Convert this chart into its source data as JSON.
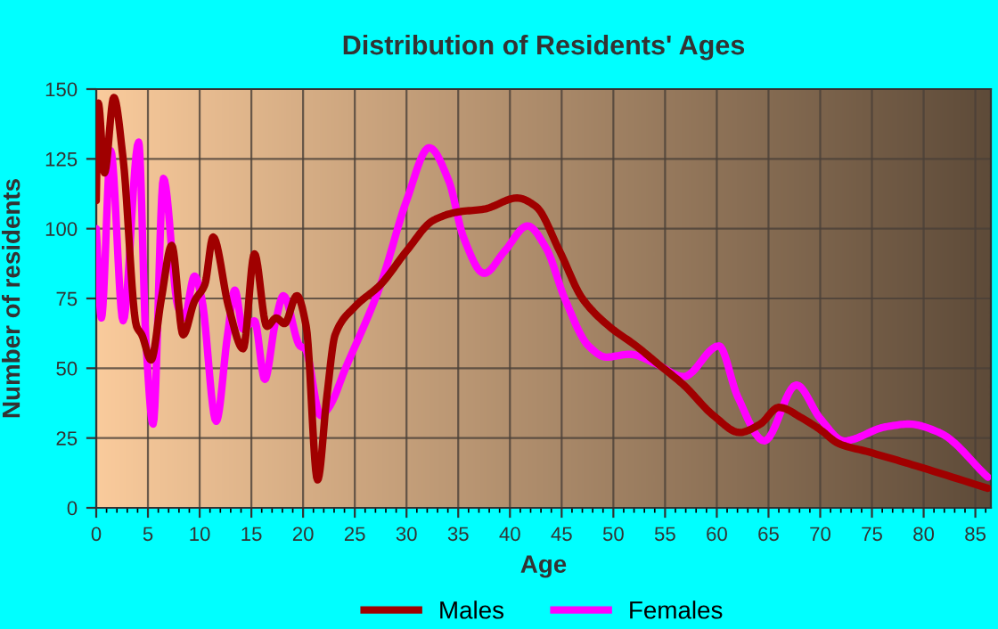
{
  "chart_data": {
    "type": "line",
    "title": "Distribution of Residents' Ages",
    "xlabel": "Age",
    "ylabel": "Number of residents",
    "xlim": [
      0,
      86.5
    ],
    "xticks": [
      0,
      5,
      10,
      15,
      20,
      25,
      30,
      35,
      40,
      45,
      50,
      55,
      60,
      65,
      70,
      75,
      80,
      85
    ],
    "ylim": [
      0,
      150
    ],
    "yticks": [
      0,
      25,
      50,
      75,
      100,
      125,
      150
    ],
    "grid": true,
    "legend": "bottom",
    "line_style": "solid",
    "marker": "none",
    "series": [
      {
        "name": "Males",
        "color": "#a00000",
        "x": [
          0,
          0.2,
          0.8,
          1.7,
          2.6,
          3.9,
          4.4,
          5.3,
          6.3,
          7.3,
          8.4,
          9.5,
          10.5,
          11.3,
          12.8,
          14.2,
          15.3,
          16.5,
          17.4,
          18.2,
          19.4,
          20.3,
          21.4,
          22.3,
          23.1,
          25,
          27.5,
          30,
          32.6,
          35,
          37.5,
          40.7,
          42.5,
          44.8,
          47,
          49.6,
          52.2,
          54.5,
          56.8,
          59.7,
          62.2,
          64.2,
          66,
          68.3,
          70,
          71.8,
          74.7,
          79.3,
          86.2
        ],
        "values": [
          110,
          145,
          120,
          147,
          125,
          65,
          62,
          53,
          75,
          94,
          62,
          74,
          80,
          97,
          72,
          57,
          91,
          65,
          68,
          66,
          76,
          65,
          10,
          40,
          62,
          72,
          80,
          92,
          103,
          106,
          107,
          111,
          108,
          92,
          75,
          65,
          58,
          51,
          44,
          33,
          27,
          30,
          36,
          32,
          28,
          23,
          20,
          15,
          7
        ]
      },
      {
        "name": "Females",
        "color": "#ff00ff",
        "x": [
          0,
          0.5,
          1.4,
          2.6,
          4.1,
          4.8,
          5.5,
          6.5,
          7.9,
          8.5,
          9.5,
          10.2,
          11.6,
          12.7,
          13.4,
          14.2,
          15.3,
          16.3,
          17.3,
          18.1,
          19.7,
          20.2,
          21.7,
          22.5,
          24.1,
          27.5,
          30,
          32.2,
          34.1,
          35.5,
          37.5,
          39.5,
          41.7,
          43.5,
          45.3,
          47.6,
          49.3,
          51.6,
          53.9,
          56.8,
          60.2,
          62,
          64.6,
          67.7,
          70,
          72.3,
          76.3,
          78.6,
          81.5,
          86.2
        ],
        "values": [
          100,
          68,
          128,
          67,
          131,
          60,
          30,
          118,
          72,
          68,
          83,
          75,
          31,
          62,
          78,
          64,
          67,
          46,
          66,
          76,
          58,
          57,
          33,
          36,
          50,
          80,
          110,
          129,
          117,
          97,
          84,
          92,
          101,
          93,
          75,
          58,
          54,
          55,
          52,
          47,
          58,
          40,
          24,
          44,
          32,
          24,
          29,
          30,
          27,
          11
        ]
      }
    ]
  }
}
